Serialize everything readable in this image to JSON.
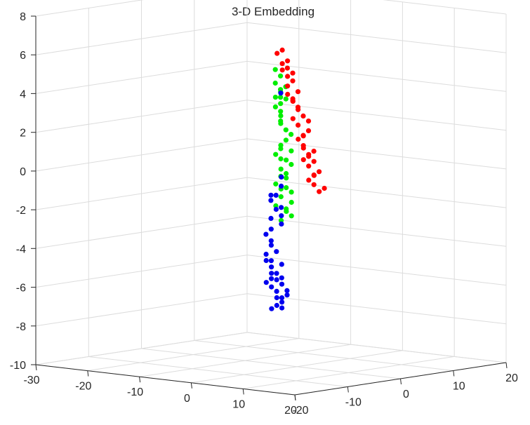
{
  "chart_data": {
    "type": "scatter",
    "title": "3-D Embedding",
    "xlabel": "",
    "ylabel": "",
    "zlabel": "",
    "grid": true,
    "xlim": [
      -30,
      20
    ],
    "ylim": [
      -20,
      20
    ],
    "zlim": [
      -10,
      8
    ],
    "x_ticks": [
      "20",
      "10",
      "0",
      "-10",
      "-20",
      "-30"
    ],
    "y_ticks": [
      "-20",
      "-10",
      "0",
      "10",
      "20"
    ],
    "z_ticks": [
      "-10",
      "-8",
      "-6",
      "-4",
      "-2",
      "0",
      "2",
      "4",
      "6",
      "8"
    ],
    "series": [
      {
        "color": "#00ee00",
        "points": [
          [
            4,
            -8,
            5.8
          ],
          [
            5,
            -8,
            5.5
          ],
          [
            4,
            -8,
            5.1
          ],
          [
            5,
            -8,
            4.8
          ],
          [
            4,
            -7,
            4.6
          ],
          [
            3,
            -7,
            4.3
          ],
          [
            5,
            -8,
            4.4
          ],
          [
            4,
            -7,
            4.0
          ],
          [
            3,
            -7,
            3.8
          ],
          [
            4,
            -7,
            3.6
          ],
          [
            3,
            -6,
            3.3
          ],
          [
            4,
            -7,
            3.1
          ],
          [
            3,
            -6,
            2.9
          ],
          [
            4,
            -6,
            2.6
          ],
          [
            5,
            -6,
            2.4
          ],
          [
            3,
            -5,
            2.0
          ],
          [
            2,
            -5,
            1.7
          ],
          [
            3,
            -4,
            1.4
          ],
          [
            1,
            -5,
            1.2
          ],
          [
            2,
            -4,
            0.9
          ],
          [
            3,
            -4,
            0.7
          ],
          [
            1,
            -4,
            0.4
          ],
          [
            2,
            -4,
            0.2
          ],
          [
            1,
            -3,
            -0.1
          ],
          [
            0,
            -4,
            -0.4
          ],
          [
            1,
            -3,
            -0.6
          ],
          [
            2,
            -3,
            -0.8
          ],
          [
            0,
            -3,
            -1.1
          ],
          [
            1,
            -2,
            -1.4
          ],
          [
            -1,
            -3,
            -1.6
          ],
          [
            0,
            -2,
            -1.9
          ],
          [
            1,
            -2,
            -2.1
          ],
          [
            -1,
            -2,
            -2.4
          ],
          [
            3,
            -6,
            1.6
          ],
          [
            2,
            -5,
            0.1
          ],
          [
            0,
            -3,
            -0.7
          ],
          [
            1,
            -3,
            -1.7
          ],
          [
            5,
            -7,
            4.9
          ],
          [
            4,
            -6,
            4.2
          ],
          [
            2,
            -5,
            1.0
          ]
        ]
      },
      {
        "color": "#ff0000",
        "points": [
          [
            -12,
            9,
            5.6
          ],
          [
            -13,
            9,
            5.4
          ],
          [
            -12,
            10,
            5.0
          ],
          [
            -11,
            9,
            4.7
          ],
          [
            -13,
            10,
            4.5
          ],
          [
            -12,
            10,
            4.2
          ],
          [
            -11,
            10,
            4.0
          ],
          [
            -12,
            10,
            3.7
          ],
          [
            -11,
            11,
            3.4
          ],
          [
            -13,
            11,
            3.2
          ],
          [
            -12,
            11,
            2.9
          ],
          [
            -11,
            11,
            2.6
          ],
          [
            -12,
            12,
            2.4
          ],
          [
            -11,
            12,
            2.1
          ],
          [
            -13,
            12,
            1.9
          ],
          [
            -12,
            12,
            1.6
          ],
          [
            -11,
            13,
            1.3
          ],
          [
            -12,
            13,
            1.0
          ],
          [
            -13,
            13,
            0.8
          ],
          [
            -12,
            13,
            0.5
          ],
          [
            -11,
            14,
            0.2
          ],
          [
            -12,
            14,
            -0.1
          ],
          [
            -13,
            14,
            -0.3
          ],
          [
            -12,
            14,
            -0.6
          ],
          [
            -11,
            15,
            -0.9
          ],
          [
            -12,
            15,
            -1.1
          ],
          [
            -13,
            15,
            -1.4
          ],
          [
            -12,
            15,
            -1.6
          ],
          [
            -11,
            16,
            -1.8
          ],
          [
            -12,
            16,
            -2.0
          ],
          [
            -13,
            12,
            2.8
          ],
          [
            -11,
            10,
            4.4
          ],
          [
            -12,
            11,
            3.0
          ],
          [
            -13,
            14,
            0.3
          ],
          [
            -11,
            13,
            1.8
          ],
          [
            -12,
            15,
            -0.4
          ],
          [
            -13,
            16,
            -1.2
          ],
          [
            -12,
            9,
            4.9
          ],
          [
            -11,
            12,
            1.1
          ],
          [
            -12,
            14,
            0.0
          ]
        ]
      },
      {
        "color": "#0000ee",
        "points": [
          [
            2,
            -5,
            4.4
          ],
          [
            -3,
            -1,
            -1.2
          ],
          [
            -4,
            -1,
            -1.5
          ],
          [
            -2,
            -1,
            -1.8
          ],
          [
            -4,
            0,
            -2.0
          ],
          [
            -3,
            0,
            -2.3
          ],
          [
            -5,
            0,
            -2.5
          ],
          [
            -4,
            1,
            -2.8
          ],
          [
            -3,
            0,
            -0.3
          ],
          [
            -2,
            -1,
            -0.7
          ],
          [
            -5,
            0,
            -1.3
          ],
          [
            -7,
            2,
            -3.2
          ],
          [
            -8,
            2,
            -3.5
          ],
          [
            -7,
            2,
            -3.8
          ],
          [
            -8,
            3,
            -4.1
          ],
          [
            -7,
            3,
            -4.4
          ],
          [
            -9,
            3,
            -4.6
          ],
          [
            -8,
            3,
            -4.9
          ],
          [
            -7,
            4,
            -5.1
          ],
          [
            -9,
            4,
            -5.3
          ],
          [
            -8,
            4,
            -5.6
          ],
          [
            -7,
            4,
            -5.8
          ],
          [
            -9,
            5,
            -6.0
          ],
          [
            -8,
            5,
            -6.2
          ],
          [
            -10,
            5,
            -6.4
          ],
          [
            -9,
            5,
            -6.6
          ],
          [
            -8,
            6,
            -6.8
          ],
          [
            -10,
            6,
            -7.0
          ],
          [
            -9,
            6,
            -7.2
          ],
          [
            -10,
            6,
            -7.4
          ],
          [
            -11,
            6,
            -7.6
          ],
          [
            -9,
            4,
            -5.9
          ],
          [
            -8,
            5,
            -6.9
          ],
          [
            -10,
            4,
            -5.0
          ],
          [
            -11,
            5,
            -6.2
          ],
          [
            -9,
            6,
            -7.5
          ],
          [
            -7,
            5,
            -6.5
          ],
          [
            -10,
            5,
            -5.7
          ]
        ]
      }
    ]
  }
}
